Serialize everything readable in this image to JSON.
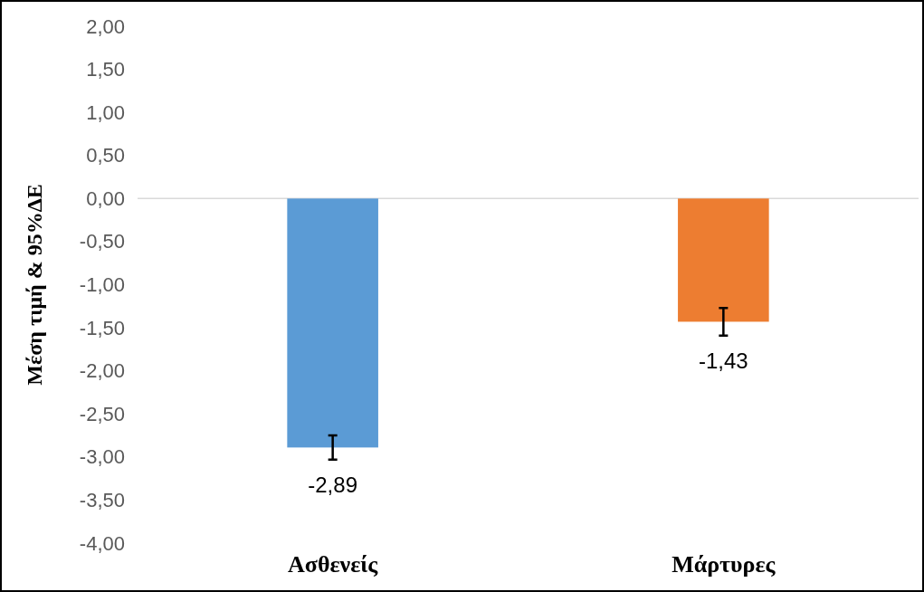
{
  "chart_data": {
    "type": "bar",
    "ylabel": "Μέση τιμή & 95%ΔΕ",
    "categories": [
      "Ασθενείς",
      "Μάρτυρες"
    ],
    "values": [
      -2.89,
      -1.43
    ],
    "colors": [
      "#5b9bd5",
      "#ed7d31"
    ],
    "errors": [
      [
        -3.03,
        -2.75
      ],
      [
        -1.59,
        -1.27
      ]
    ],
    "value_labels": [
      "-2,89",
      "-1,43"
    ],
    "ylim": [
      -4,
      2
    ],
    "yticks": [
      {
        "value": 2,
        "label": "2,00"
      },
      {
        "value": 1.5,
        "label": "1,50"
      },
      {
        "value": 1,
        "label": "1,00"
      },
      {
        "value": 0.5,
        "label": "0,50"
      },
      {
        "value": 0,
        "label": "0,00"
      },
      {
        "value": -0.5,
        "label": "-0,50"
      },
      {
        "value": -1,
        "label": "-1,00"
      },
      {
        "value": -1.5,
        "label": "-1,50"
      },
      {
        "value": -2,
        "label": "-2,00"
      },
      {
        "value": -2.5,
        "label": "-2,50"
      },
      {
        "value": -3,
        "label": "-3,00"
      },
      {
        "value": -3.5,
        "label": "-3,50"
      },
      {
        "value": -4,
        "label": "-4,00"
      }
    ]
  }
}
